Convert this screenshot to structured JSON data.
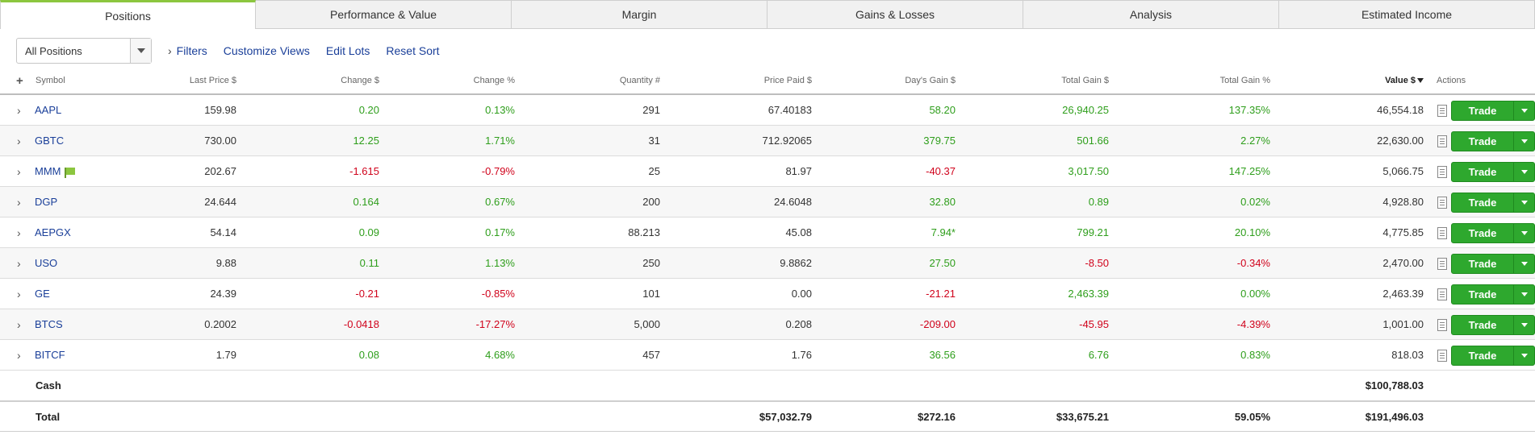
{
  "tabs": [
    {
      "label": "Positions",
      "active": true
    },
    {
      "label": "Performance & Value",
      "active": false
    },
    {
      "label": "Margin",
      "active": false
    },
    {
      "label": "Gains & Losses",
      "active": false
    },
    {
      "label": "Analysis",
      "active": false
    },
    {
      "label": "Estimated Income",
      "active": false
    }
  ],
  "toolbar": {
    "view_select": "All Positions",
    "filters": "Filters",
    "customize_views": "Customize Views",
    "edit_lots": "Edit Lots",
    "reset_sort": "Reset Sort"
  },
  "columns": {
    "add": "+",
    "symbol": "Symbol",
    "last_price": "Last Price $",
    "change": "Change $",
    "change_pct": "Change %",
    "quantity": "Quantity #",
    "price_paid": "Price Paid $",
    "days_gain": "Day's Gain $",
    "total_gain": "Total Gain $",
    "total_gain_pct": "Total Gain %",
    "value": "Value $",
    "actions": "Actions"
  },
  "trade_label": "Trade",
  "rows": [
    {
      "symbol": "AAPL",
      "last": "159.98",
      "chg": "0.20",
      "chgp": "0.13%",
      "qty": "291",
      "paid": "67.40183",
      "day": "58.20",
      "tg": "26,940.25",
      "tgp": "137.35%",
      "value": "46,554.18"
    },
    {
      "symbol": "GBTC",
      "last": "730.00",
      "chg": "12.25",
      "chgp": "1.71%",
      "qty": "31",
      "paid": "712.92065",
      "day": "379.75",
      "tg": "501.66",
      "tgp": "2.27%",
      "value": "22,630.00"
    },
    {
      "symbol": "MMM",
      "last": "202.67",
      "chg": "-1.615",
      "chgp": "-0.79%",
      "qty": "25",
      "paid": "81.97",
      "day": "-40.37",
      "tg": "3,017.50",
      "tgp": "147.25%",
      "value": "5,066.75"
    },
    {
      "symbol": "DGP",
      "last": "24.644",
      "chg": "0.164",
      "chgp": "0.67%",
      "qty": "200",
      "paid": "24.6048",
      "day": "32.80",
      "tg": "0.89",
      "tgp": "0.02%",
      "value": "4,928.80"
    },
    {
      "symbol": "AEPGX",
      "last": "54.14",
      "chg": "0.09",
      "chgp": "0.17%",
      "qty": "88.213",
      "paid": "45.08",
      "day": "7.94*",
      "tg": "799.21",
      "tgp": "20.10%",
      "value": "4,775.85"
    },
    {
      "symbol": "USO",
      "last": "9.88",
      "chg": "0.11",
      "chgp": "1.13%",
      "qty": "250",
      "paid": "9.8862",
      "day": "27.50",
      "tg": "-8.50",
      "tgp": "-0.34%",
      "value": "2,470.00"
    },
    {
      "symbol": "GE",
      "last": "24.39",
      "chg": "-0.21",
      "chgp": "-0.85%",
      "qty": "101",
      "paid": "0.00",
      "day": "-21.21",
      "tg": "2,463.39",
      "tgp": "0.00%",
      "value": "2,463.39"
    },
    {
      "symbol": "BTCS",
      "last": "0.2002",
      "chg": "-0.0418",
      "chgp": "-17.27%",
      "qty": "5,000",
      "paid": "0.208",
      "day": "-209.00",
      "tg": "-45.95",
      "tgp": "-4.39%",
      "value": "1,001.00"
    },
    {
      "symbol": "BITCF",
      "last": "1.79",
      "chg": "0.08",
      "chgp": "4.68%",
      "qty": "457",
      "paid": "1.76",
      "day": "36.56",
      "tg": "6.76",
      "tgp": "0.83%",
      "value": "818.03"
    }
  ],
  "cash": {
    "label": "Cash",
    "value": "$100,788.03"
  },
  "total": {
    "label": "Total",
    "paid": "$57,032.79",
    "day": "$272.16",
    "tg": "$33,675.21",
    "tgp": "59.05%",
    "value": "$191,496.03"
  },
  "colors": {
    "positive": "#2e9e1b",
    "negative": "#d0021b",
    "link": "#1a3f99",
    "trade_button": "#2ea82e",
    "active_tab_accent": "#8cc63f"
  }
}
